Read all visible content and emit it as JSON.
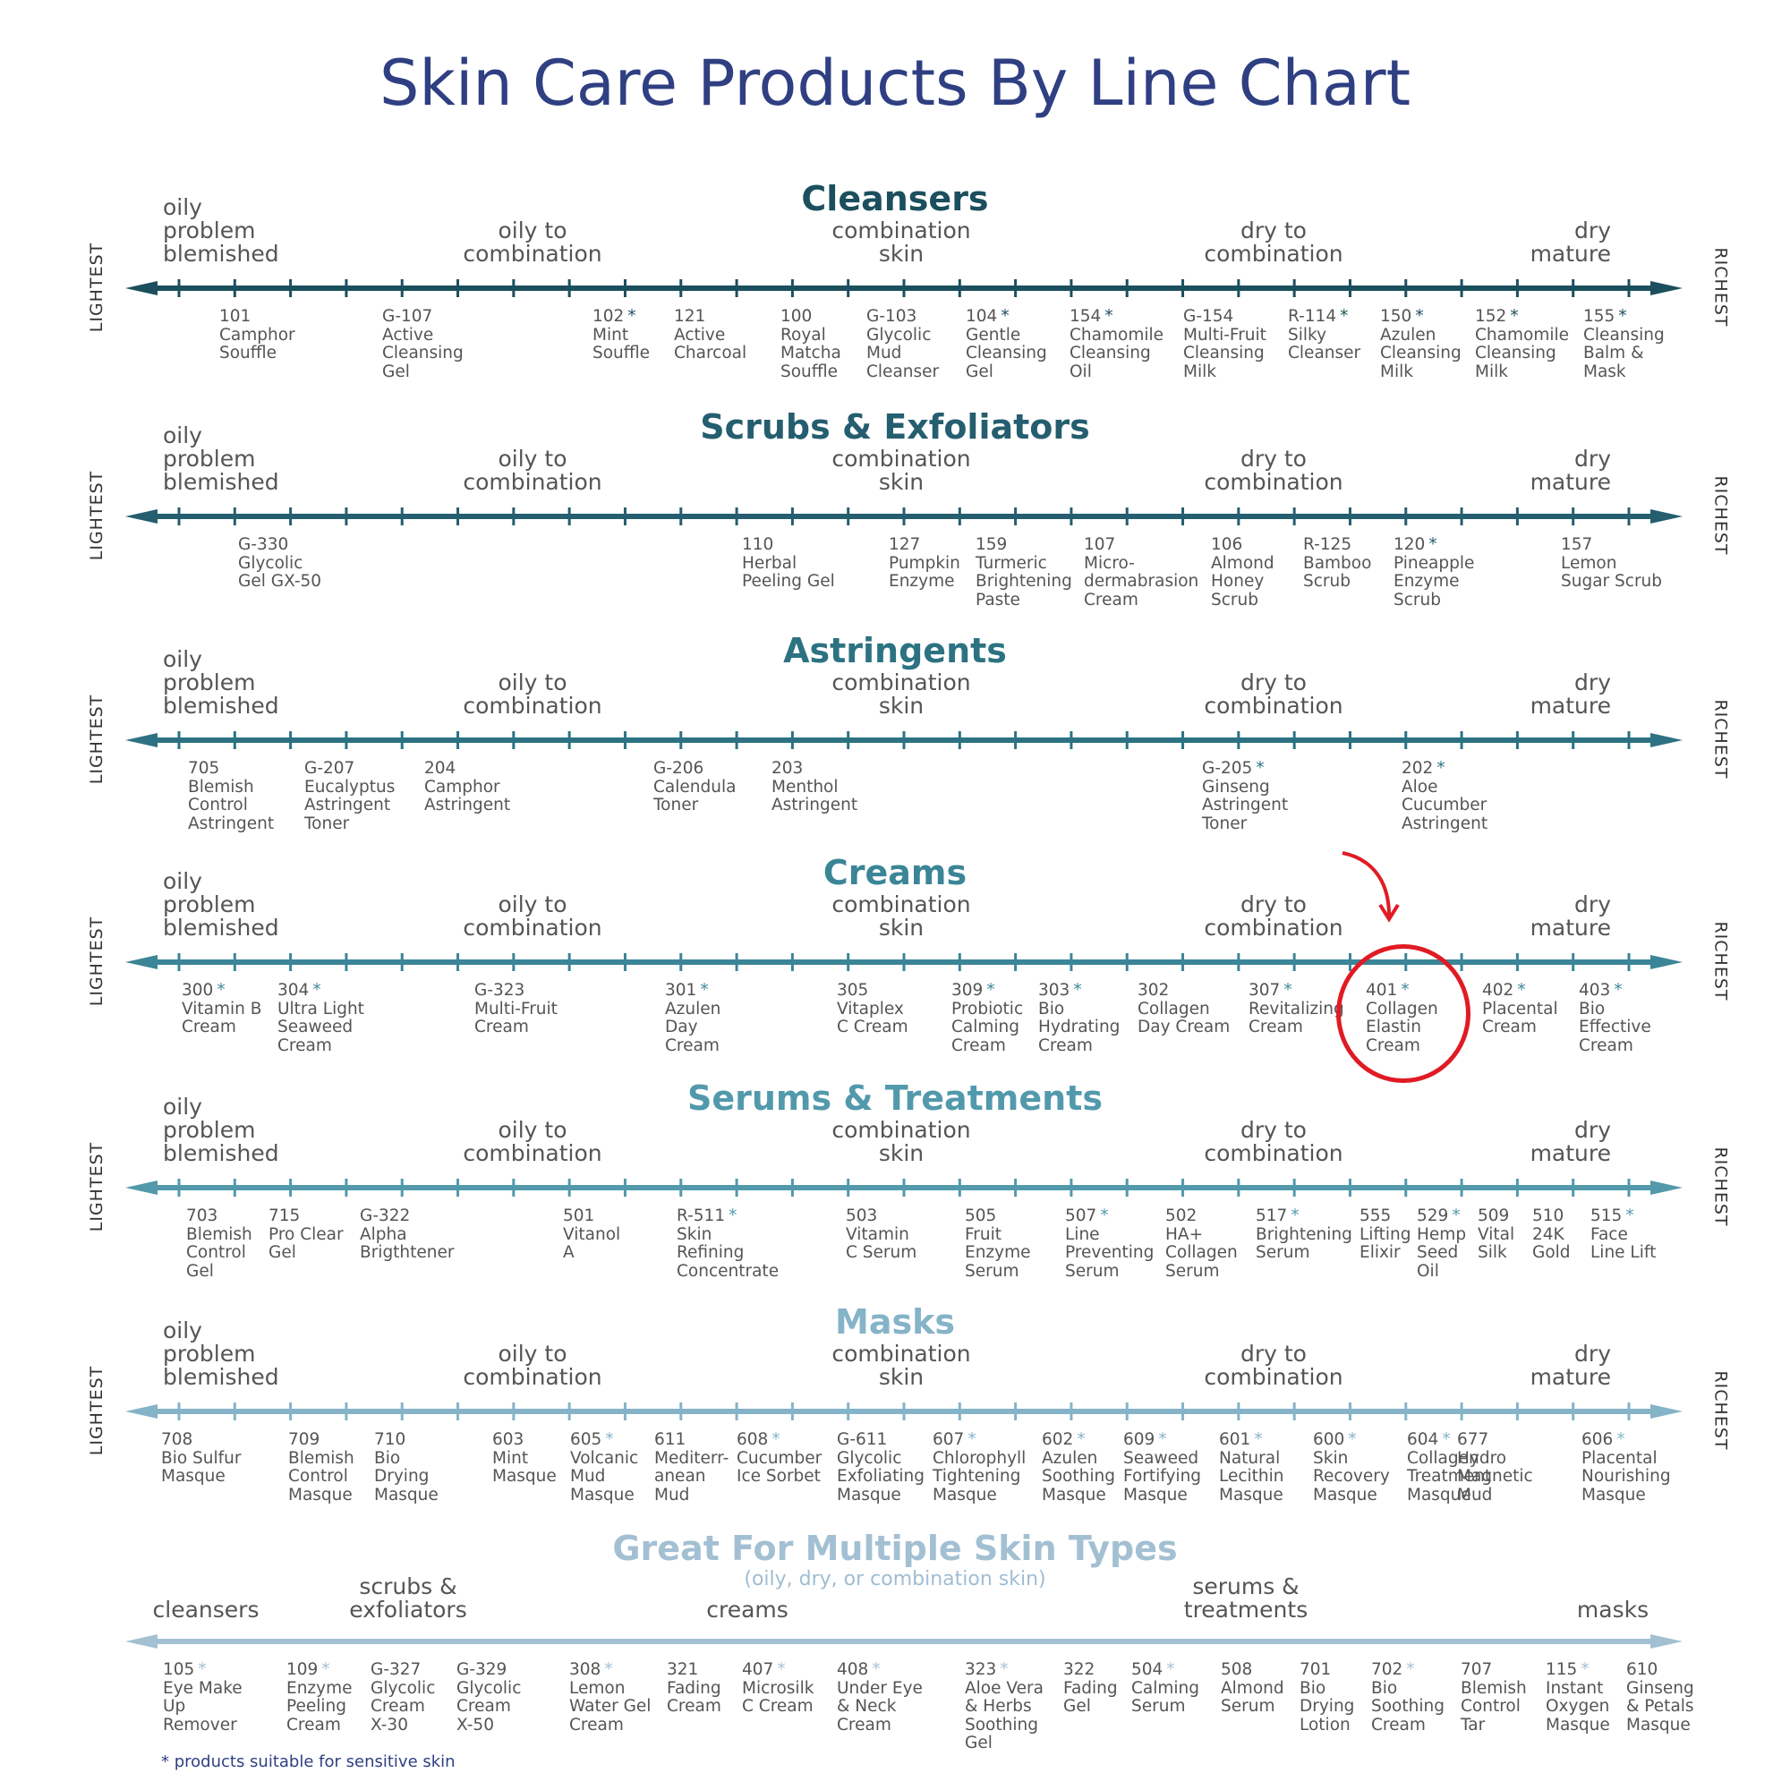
{
  "title": "Skin Care Products By Line Chart",
  "axis_left_label": "LIGHTEST",
  "axis_right_label": "RICHEST",
  "skin_types": {
    "oily": "oily\nproblem\nblemished",
    "oily_combo": "oily to\ncombination",
    "combo": "combination\nskin",
    "dry_combo": "dry to\ncombination",
    "dry": "dry\nmature"
  },
  "colors": {
    "cleansers": "#1b4f5e",
    "scrubs": "#245e6f",
    "astringents": "#2c7282",
    "creams": "#3b8597",
    "serums": "#5299ac",
    "masks": "#85b3c8",
    "multiple": "#a3c0d3",
    "highlight": "#e01b24",
    "title": "#2f3f82"
  },
  "sections": [
    {
      "key": "cleansers",
      "title": "Cleansers",
      "products": [
        {
          "code": "101",
          "name": "Camphor\nSouffle",
          "sensitive": false
        },
        {
          "code": "G-107",
          "name": "Active\nCleansing\nGel",
          "sensitive": false
        },
        {
          "code": "102",
          "name": "Mint\nSouffle",
          "sensitive": true
        },
        {
          "code": "121",
          "name": "Active\nCharcoal",
          "sensitive": false
        },
        {
          "code": "100",
          "name": "Royal\nMatcha\nSouffle",
          "sensitive": false
        },
        {
          "code": "G-103",
          "name": "Glycolic\nMud\nCleanser",
          "sensitive": false
        },
        {
          "code": "104",
          "name": "Gentle\nCleansing\nGel",
          "sensitive": true
        },
        {
          "code": "154",
          "name": "Chamomile\nCleansing\nOil",
          "sensitive": true
        },
        {
          "code": "G-154",
          "name": "Multi-Fruit\nCleansing\nMilk",
          "sensitive": false
        },
        {
          "code": "R-114",
          "name": "Silky\nCleanser",
          "sensitive": true
        },
        {
          "code": "150",
          "name": "Azulen\nCleansing\nMilk",
          "sensitive": true
        },
        {
          "code": "152",
          "name": "Chamomile\nCleansing\nMilk",
          "sensitive": true
        },
        {
          "code": "155",
          "name": "Cleansing\nBalm &\nMask",
          "sensitive": true
        }
      ]
    },
    {
      "key": "scrubs",
      "title": "Scrubs & Exfoliators",
      "products": [
        {
          "code": "G-330",
          "name": "Glycolic\nGel GX-50",
          "sensitive": false
        },
        {
          "code": "110",
          "name": "Herbal\nPeeling Gel",
          "sensitive": false
        },
        {
          "code": "127",
          "name": "Pumpkin\nEnzyme",
          "sensitive": false
        },
        {
          "code": "159",
          "name": "Turmeric\nBrightening\nPaste",
          "sensitive": false
        },
        {
          "code": "107",
          "name": "Micro-\ndermabrasion\nCream",
          "sensitive": false
        },
        {
          "code": "106",
          "name": "Almond\nHoney\nScrub",
          "sensitive": false
        },
        {
          "code": "R-125",
          "name": "Bamboo\nScrub",
          "sensitive": false
        },
        {
          "code": "120",
          "name": "Pineapple\nEnzyme\nScrub",
          "sensitive": true
        },
        {
          "code": "157",
          "name": "Lemon\nSugar Scrub",
          "sensitive": false
        }
      ]
    },
    {
      "key": "astringents",
      "title": "Astringents",
      "products": [
        {
          "code": "705",
          "name": "Blemish\nControl\nAstringent",
          "sensitive": false
        },
        {
          "code": "G-207",
          "name": "Eucalyptus\nAstringent\nToner",
          "sensitive": false
        },
        {
          "code": "204",
          "name": "Camphor\nAstringent",
          "sensitive": false
        },
        {
          "code": "G-206",
          "name": "Calendula\nToner",
          "sensitive": false
        },
        {
          "code": "203",
          "name": "Menthol\nAstringent",
          "sensitive": false
        },
        {
          "code": "G-205",
          "name": "Ginseng\nAstringent\nToner",
          "sensitive": true
        },
        {
          "code": "202",
          "name": "Aloe\nCucumber\nAstringent",
          "sensitive": true
        }
      ]
    },
    {
      "key": "creams",
      "title": "Creams",
      "products": [
        {
          "code": "300",
          "name": "Vitamin B\nCream",
          "sensitive": true
        },
        {
          "code": "304",
          "name": "Ultra Light\nSeaweed\nCream",
          "sensitive": true
        },
        {
          "code": "G-323",
          "name": "Multi-Fruit\nCream",
          "sensitive": false
        },
        {
          "code": "301",
          "name": "Azulen\nDay\nCream",
          "sensitive": true
        },
        {
          "code": "305",
          "name": "Vitaplex\nC Cream",
          "sensitive": false
        },
        {
          "code": "309",
          "name": "Probiotic\nCalming\nCream",
          "sensitive": true
        },
        {
          "code": "303",
          "name": "Bio\nHydrating\nCream",
          "sensitive": true
        },
        {
          "code": "302",
          "name": "Collagen\nDay Cream",
          "sensitive": false
        },
        {
          "code": "307",
          "name": "Revitalizing\nCream",
          "sensitive": true
        },
        {
          "code": "401",
          "name": "Collagen\nElastin\nCream",
          "sensitive": true
        },
        {
          "code": "402",
          "name": "Placental\nCream",
          "sensitive": true
        },
        {
          "code": "403",
          "name": "Bio\nEffective\nCream",
          "sensitive": true
        }
      ]
    },
    {
      "key": "serums",
      "title": "Serums & Treatments",
      "products": [
        {
          "code": "703",
          "name": "Blemish\nControl\nGel",
          "sensitive": false
        },
        {
          "code": "715",
          "name": "Pro Clear\nGel",
          "sensitive": false
        },
        {
          "code": "G-322",
          "name": "Alpha\nBrigthtener",
          "sensitive": false
        },
        {
          "code": "501",
          "name": "Vitanol\nA",
          "sensitive": false
        },
        {
          "code": "R-511",
          "name": "Skin\nRefining\nConcentrate",
          "sensitive": true
        },
        {
          "code": "503",
          "name": "Vitamin\nC Serum",
          "sensitive": false
        },
        {
          "code": "505",
          "name": "Fruit\nEnzyme\nSerum",
          "sensitive": false
        },
        {
          "code": "507",
          "name": "Line\nPreventing\nSerum",
          "sensitive": true
        },
        {
          "code": "502",
          "name": "HA+\nCollagen\nSerum",
          "sensitive": false
        },
        {
          "code": "517",
          "name": "Brightening\nSerum",
          "sensitive": true
        },
        {
          "code": "555",
          "name": "Lifting\nElixir",
          "sensitive": false
        },
        {
          "code": "529",
          "name": "Hemp\nSeed\nOil",
          "sensitive": true
        },
        {
          "code": "509",
          "name": "Vital\nSilk",
          "sensitive": false
        },
        {
          "code": "510",
          "name": "24K\nGold",
          "sensitive": false
        },
        {
          "code": "515",
          "name": "Face\nLine Lift",
          "sensitive": true
        }
      ]
    },
    {
      "key": "masks",
      "title": "Masks",
      "products": [
        {
          "code": "708",
          "name": "Bio Sulfur\nMasque",
          "sensitive": false
        },
        {
          "code": "709",
          "name": "Blemish\nControl\nMasque",
          "sensitive": false
        },
        {
          "code": "710",
          "name": "Bio\nDrying\nMasque",
          "sensitive": false
        },
        {
          "code": "603",
          "name": "Mint\nMasque",
          "sensitive": false
        },
        {
          "code": "605",
          "name": "Volcanic\nMud\nMasque",
          "sensitive": true
        },
        {
          "code": "611",
          "name": "Mediterr-\nanean\nMud",
          "sensitive": false
        },
        {
          "code": "608",
          "name": "Cucumber\nIce Sorbet",
          "sensitive": true
        },
        {
          "code": "G-611",
          "name": "Glycolic\nExfoliating\nMasque",
          "sensitive": false
        },
        {
          "code": "607",
          "name": "Chlorophyll\nTightening\nMasque",
          "sensitive": true
        },
        {
          "code": "602",
          "name": "Azulen\nSoothing\nMasque",
          "sensitive": true
        },
        {
          "code": "609",
          "name": "Seaweed\nFortifying\nMasque",
          "sensitive": true
        },
        {
          "code": "601",
          "name": "Natural\nLecithin\nMasque",
          "sensitive": true
        },
        {
          "code": "600",
          "name": "Skin\nRecovery\nMasque",
          "sensitive": true
        },
        {
          "code": "604",
          "name": "Collagen\nTreatment\nMasque",
          "sensitive": true
        },
        {
          "code": "677",
          "name": "Hydro\nMagnetic\nMud",
          "sensitive": false
        },
        {
          "code": "606",
          "name": "Placental\nNourishing\nMasque",
          "sensitive": true
        }
      ]
    }
  ],
  "multiple": {
    "title": "Great For Multiple Skin Types",
    "subtitle": "(oily, dry, or combination skin)",
    "categories": {
      "cleansers": "cleansers",
      "scrubs": "scrubs &\nexfoliators",
      "creams": "creams",
      "serums": "serums &\ntreatments",
      "masks": "masks"
    },
    "products": [
      {
        "code": "105",
        "name": "Eye Make\nUp\nRemover",
        "sensitive": true
      },
      {
        "code": "109",
        "name": "Enzyme\nPeeling\nCream",
        "sensitive": true
      },
      {
        "code": "G-327",
        "name": "Glycolic\nCream\nX-30",
        "sensitive": false
      },
      {
        "code": "G-329",
        "name": "Glycolic\nCream\nX-50",
        "sensitive": false
      },
      {
        "code": "308",
        "name": "Lemon\nWater Gel\nCream",
        "sensitive": true
      },
      {
        "code": "321",
        "name": "Fading\nCream",
        "sensitive": false
      },
      {
        "code": "407",
        "name": "Microsilk\nC Cream",
        "sensitive": true
      },
      {
        "code": "408",
        "name": "Under Eye\n& Neck\nCream",
        "sensitive": true
      },
      {
        "code": "323",
        "name": "Aloe Vera\n& Herbs\nSoothing\nGel",
        "sensitive": true
      },
      {
        "code": "322",
        "name": "Fading\nGel",
        "sensitive": false
      },
      {
        "code": "504",
        "name": "Calming\nSerum",
        "sensitive": true
      },
      {
        "code": "508",
        "name": "Almond\nSerum",
        "sensitive": false
      },
      {
        "code": "701",
        "name": "Bio\nDrying\nLotion",
        "sensitive": false
      },
      {
        "code": "702",
        "name": "Bio\nSoothing\nCream",
        "sensitive": true
      },
      {
        "code": "707",
        "name": "Blemish\nControl\nTar",
        "sensitive": false
      },
      {
        "code": "115",
        "name": "Instant\nOxygen\nMasque",
        "sensitive": true
      },
      {
        "code": "610",
        "name": "Ginseng\n& Petals\nMasque",
        "sensitive": false
      }
    ]
  },
  "footnote": "* products suitable for sensitive skin"
}
